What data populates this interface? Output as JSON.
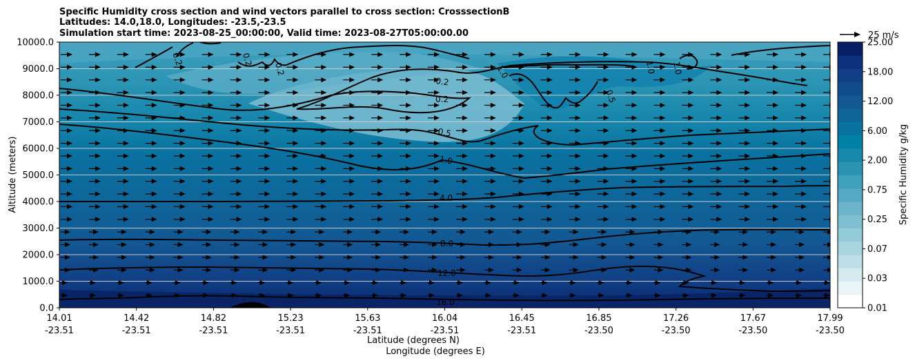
{
  "chart_data": {
    "type": "contourf",
    "title_lines": [
      "Specific Humidity cross section and wind vectors parallel to cross section: CrosssectionB",
      "Latitudes: 14.0,18.0, Longitudes: -23.5,-23.5",
      "Simulation start time: 2023-08-25_00:00:00, Valid time: 2023-08-27T05:00:00.00"
    ],
    "xlabel_primary": "Latitude (degrees N)",
    "xlabel_secondary": "Longitude (degrees E)",
    "ylabel": "Altitude (meters)",
    "ylim": [
      0,
      10000
    ],
    "y_ticks": [
      0,
      1000,
      2000,
      3000,
      4000,
      5000,
      6000,
      7000,
      8000,
      9000,
      10000
    ],
    "y_tick_labels": [
      "0.0",
      "1000.0",
      "2000.0",
      "3000.0",
      "4000.0",
      "5000.0",
      "6000.0",
      "7000.0",
      "8000.0",
      "9000.0",
      "10000.0"
    ],
    "x_ticks": [
      {
        "lat": "14.01",
        "lon": "-23.51"
      },
      {
        "lat": "14.42",
        "lon": "-23.51"
      },
      {
        "lat": "14.82",
        "lon": "-23.51"
      },
      {
        "lat": "15.23",
        "lon": "-23.51"
      },
      {
        "lat": "15.63",
        "lon": "-23.51"
      },
      {
        "lat": "16.04",
        "lon": "-23.51"
      },
      {
        "lat": "16.45",
        "lon": "-23.51"
      },
      {
        "lat": "16.85",
        "lon": "-23.50"
      },
      {
        "lat": "17.26",
        "lon": "-23.50"
      },
      {
        "lat": "17.67",
        "lon": "-23.50"
      },
      {
        "lat": "17.99",
        "lon": "-23.50"
      }
    ],
    "colorbar": {
      "label": "Specific Humidity g/kg",
      "tick_labels": [
        "0.01",
        "0.03",
        "0.07",
        "0.25",
        "0.75",
        "2.00",
        "6.00",
        "12.00",
        "18.00",
        "25.00"
      ],
      "levels": 20,
      "colors": [
        "#ffffff",
        "#eaf4f7",
        "#d4eaef",
        "#bfdfe8",
        "#aad4e0",
        "#95cad9",
        "#80bfd1",
        "#6bb4ca",
        "#56a9c2",
        "#409fbb",
        "#2b94b3",
        "#1689ac",
        "#0080a6",
        "#0a72a0",
        "#0f6599",
        "#125893",
        "#124b8c",
        "#113e84",
        "#0e317b",
        "#081f66"
      ]
    },
    "contour_lines": [
      {
        "label": "0.2",
        "approx_altitude_m": 8000
      },
      {
        "label": "0.5",
        "approx_altitude_m": 6500
      },
      {
        "label": "1.0",
        "approx_altitude_m": 5500
      },
      {
        "label": "4.0",
        "approx_altitude_m": 4200
      },
      {
        "label": "8.0",
        "approx_altitude_m": 2500
      },
      {
        "label": "12.0",
        "approx_altitude_m": 1400
      },
      {
        "label": "16.0",
        "approx_altitude_m": 300
      }
    ],
    "quiver_key": {
      "label": "25 m/s"
    },
    "wind": {
      "direction": "east",
      "columns": 28,
      "rows": 20
    }
  }
}
